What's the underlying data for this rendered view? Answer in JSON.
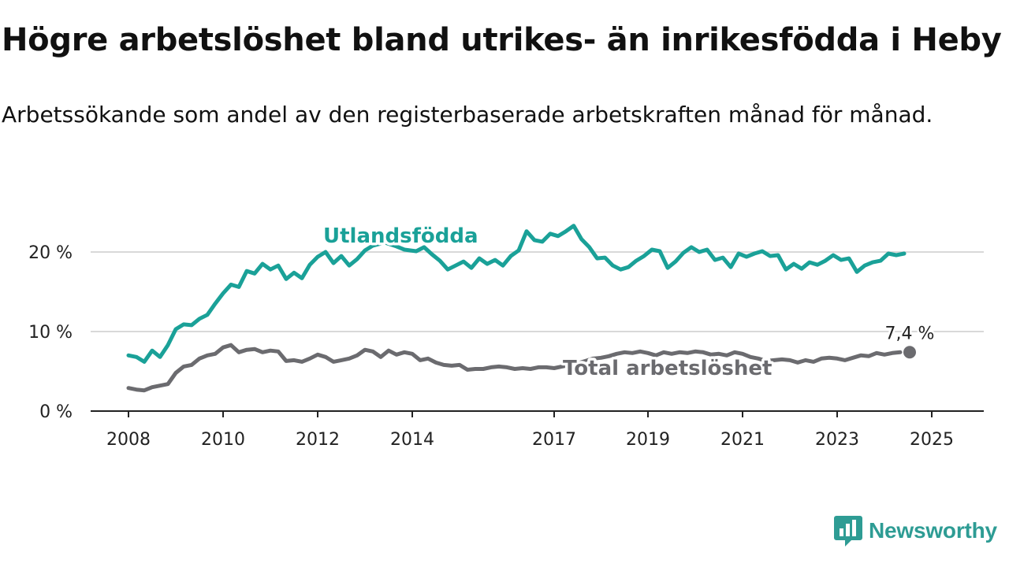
{
  "title": "Högre arbetslöshet bland utrikes- än inrikesfödda i Heby",
  "subtitle": "Arbetssökande som andel av den registerbaserade arbetskraften månad för månad.",
  "logo": {
    "text": "Newsworthy",
    "icon": "newsworthy-logo-icon"
  },
  "colors": {
    "foreign_born": "#1aa198",
    "total": "#6b6b6f",
    "gridline": "#d9d9d9",
    "axis": "#222222"
  },
  "chart_data": {
    "type": "line",
    "x_ticks": [
      "2008",
      "2010",
      "2012",
      "2014",
      "2017",
      "2019",
      "2021",
      "2023",
      "2025"
    ],
    "y_ticks": [
      "0 %",
      "10 %",
      "20 %"
    ],
    "ylim": [
      0,
      20
    ],
    "grid": "horizontal",
    "series": [
      {
        "name": "Utlandsfödda",
        "label_position": "above line near 2012-2014",
        "points": [
          [
            "2008-01",
            7.0
          ],
          [
            "2008-03",
            6.8
          ],
          [
            "2008-05",
            6.2
          ],
          [
            "2008-07",
            7.6
          ],
          [
            "2008-09",
            6.8
          ],
          [
            "2008-11",
            8.3
          ],
          [
            "2009-01",
            10.3
          ],
          [
            "2009-03",
            10.9
          ],
          [
            "2009-05",
            10.8
          ],
          [
            "2009-07",
            11.6
          ],
          [
            "2009-09",
            12.1
          ],
          [
            "2009-11",
            13.5
          ],
          [
            "2010-01",
            14.8
          ],
          [
            "2010-03",
            15.9
          ],
          [
            "2010-05",
            15.6
          ],
          [
            "2010-07",
            17.6
          ],
          [
            "2010-09",
            17.3
          ],
          [
            "2010-11",
            18.5
          ],
          [
            "2011-01",
            17.8
          ],
          [
            "2011-03",
            18.3
          ],
          [
            "2011-05",
            16.6
          ],
          [
            "2011-07",
            17.4
          ],
          [
            "2011-09",
            16.7
          ],
          [
            "2011-11",
            18.4
          ],
          [
            "2012-01",
            19.4
          ],
          [
            "2012-03",
            20.0
          ],
          [
            "2012-05",
            18.6
          ],
          [
            "2012-07",
            19.5
          ],
          [
            "2012-09",
            18.3
          ],
          [
            "2012-11",
            19.1
          ],
          [
            "2013-01",
            20.2
          ],
          [
            "2013-03",
            20.8
          ],
          [
            "2013-06",
            21.2
          ],
          [
            "2013-09",
            20.7
          ],
          [
            "2013-11",
            20.3
          ],
          [
            "2014-02",
            20.1
          ],
          [
            "2014-04",
            20.6
          ],
          [
            "2014-06",
            19.7
          ],
          [
            "2014-08",
            18.9
          ],
          [
            "2014-10",
            17.8
          ],
          [
            "2014-12",
            18.3
          ],
          [
            "2015-02",
            18.8
          ],
          [
            "2015-04",
            18.0
          ],
          [
            "2015-06",
            19.2
          ],
          [
            "2015-08",
            18.5
          ],
          [
            "2015-10",
            19.0
          ],
          [
            "2015-12",
            18.3
          ],
          [
            "2016-02",
            19.5
          ],
          [
            "2016-04",
            20.2
          ],
          [
            "2016-06",
            22.6
          ],
          [
            "2016-08",
            21.5
          ],
          [
            "2016-10",
            21.3
          ],
          [
            "2016-12",
            22.3
          ],
          [
            "2017-02",
            22.0
          ],
          [
            "2017-04",
            22.6
          ],
          [
            "2017-06",
            23.3
          ],
          [
            "2017-08",
            21.6
          ],
          [
            "2017-10",
            20.6
          ],
          [
            "2017-12",
            19.2
          ],
          [
            "2018-02",
            19.3
          ],
          [
            "2018-04",
            18.3
          ],
          [
            "2018-06",
            17.8
          ],
          [
            "2018-08",
            18.1
          ],
          [
            "2018-10",
            18.9
          ],
          [
            "2018-12",
            19.5
          ],
          [
            "2019-02",
            20.3
          ],
          [
            "2019-04",
            20.1
          ],
          [
            "2019-06",
            18.0
          ],
          [
            "2019-08",
            18.8
          ],
          [
            "2019-10",
            19.9
          ],
          [
            "2019-12",
            20.6
          ],
          [
            "2020-02",
            20.0
          ],
          [
            "2020-04",
            20.3
          ],
          [
            "2020-06",
            19.0
          ],
          [
            "2020-08",
            19.3
          ],
          [
            "2020-10",
            18.1
          ],
          [
            "2020-12",
            19.8
          ],
          [
            "2021-02",
            19.4
          ],
          [
            "2021-04",
            19.8
          ],
          [
            "2021-06",
            20.1
          ],
          [
            "2021-08",
            19.5
          ],
          [
            "2021-10",
            19.6
          ],
          [
            "2021-12",
            17.8
          ],
          [
            "2022-02",
            18.5
          ],
          [
            "2022-04",
            17.9
          ],
          [
            "2022-06",
            18.7
          ],
          [
            "2022-08",
            18.4
          ],
          [
            "2022-10",
            18.9
          ],
          [
            "2022-12",
            19.6
          ],
          [
            "2023-02",
            19.0
          ],
          [
            "2023-04",
            19.2
          ],
          [
            "2023-06",
            17.5
          ],
          [
            "2023-08",
            18.3
          ],
          [
            "2023-10",
            18.7
          ],
          [
            "2023-12",
            18.9
          ],
          [
            "2024-02",
            19.8
          ],
          [
            "2024-04",
            19.6
          ],
          [
            "2024-06",
            19.8
          ]
        ]
      },
      {
        "name": "Total arbetslöshet",
        "label_position": "below line near 2017-2020",
        "end_label": "7,4 %",
        "points": [
          [
            "2008-01",
            2.9
          ],
          [
            "2008-03",
            2.7
          ],
          [
            "2008-05",
            2.6
          ],
          [
            "2008-07",
            3.0
          ],
          [
            "2008-09",
            3.2
          ],
          [
            "2008-11",
            3.4
          ],
          [
            "2009-01",
            4.8
          ],
          [
            "2009-03",
            5.6
          ],
          [
            "2009-05",
            5.8
          ],
          [
            "2009-07",
            6.6
          ],
          [
            "2009-09",
            7.0
          ],
          [
            "2009-11",
            7.2
          ],
          [
            "2010-01",
            8.0
          ],
          [
            "2010-03",
            8.3
          ],
          [
            "2010-05",
            7.4
          ],
          [
            "2010-07",
            7.7
          ],
          [
            "2010-09",
            7.8
          ],
          [
            "2010-11",
            7.4
          ],
          [
            "2011-01",
            7.6
          ],
          [
            "2011-03",
            7.5
          ],
          [
            "2011-05",
            6.3
          ],
          [
            "2011-07",
            6.4
          ],
          [
            "2011-09",
            6.2
          ],
          [
            "2011-11",
            6.6
          ],
          [
            "2012-01",
            7.1
          ],
          [
            "2012-03",
            6.8
          ],
          [
            "2012-05",
            6.2
          ],
          [
            "2012-07",
            6.4
          ],
          [
            "2012-09",
            6.6
          ],
          [
            "2012-11",
            7.0
          ],
          [
            "2013-01",
            7.7
          ],
          [
            "2013-03",
            7.5
          ],
          [
            "2013-05",
            6.8
          ],
          [
            "2013-07",
            7.6
          ],
          [
            "2013-09",
            7.1
          ],
          [
            "2013-11",
            7.4
          ],
          [
            "2014-01",
            7.2
          ],
          [
            "2014-03",
            6.4
          ],
          [
            "2014-05",
            6.6
          ],
          [
            "2014-07",
            6.1
          ],
          [
            "2014-09",
            5.8
          ],
          [
            "2014-11",
            5.7
          ],
          [
            "2015-01",
            5.8
          ],
          [
            "2015-03",
            5.2
          ],
          [
            "2015-05",
            5.3
          ],
          [
            "2015-07",
            5.3
          ],
          [
            "2015-09",
            5.5
          ],
          [
            "2015-11",
            5.6
          ],
          [
            "2016-01",
            5.5
          ],
          [
            "2016-03",
            5.3
          ],
          [
            "2016-05",
            5.4
          ],
          [
            "2016-07",
            5.3
          ],
          [
            "2016-09",
            5.5
          ],
          [
            "2016-11",
            5.5
          ],
          [
            "2017-01",
            5.4
          ],
          [
            "2017-03",
            5.6
          ],
          [
            "2017-05",
            5.8
          ],
          [
            "2017-07",
            6.0
          ],
          [
            "2017-09",
            6.3
          ],
          [
            "2017-11",
            6.6
          ],
          [
            "2018-01",
            6.7
          ],
          [
            "2018-03",
            6.9
          ],
          [
            "2018-05",
            7.2
          ],
          [
            "2018-07",
            7.4
          ],
          [
            "2018-09",
            7.3
          ],
          [
            "2018-11",
            7.5
          ],
          [
            "2019-01",
            7.3
          ],
          [
            "2019-03",
            7.0
          ],
          [
            "2019-05",
            7.4
          ],
          [
            "2019-07",
            7.2
          ],
          [
            "2019-09",
            7.4
          ],
          [
            "2019-11",
            7.3
          ],
          [
            "2020-01",
            7.5
          ],
          [
            "2020-03",
            7.4
          ],
          [
            "2020-05",
            7.1
          ],
          [
            "2020-07",
            7.2
          ],
          [
            "2020-09",
            7.0
          ],
          [
            "2020-11",
            7.4
          ],
          [
            "2021-01",
            7.2
          ],
          [
            "2021-03",
            6.8
          ],
          [
            "2021-05",
            6.6
          ],
          [
            "2021-07",
            6.3
          ],
          [
            "2021-09",
            6.4
          ],
          [
            "2021-11",
            6.5
          ],
          [
            "2022-01",
            6.4
          ],
          [
            "2022-03",
            6.1
          ],
          [
            "2022-05",
            6.4
          ],
          [
            "2022-07",
            6.2
          ],
          [
            "2022-09",
            6.6
          ],
          [
            "2022-11",
            6.7
          ],
          [
            "2023-01",
            6.6
          ],
          [
            "2023-03",
            6.4
          ],
          [
            "2023-05",
            6.7
          ],
          [
            "2023-07",
            7.0
          ],
          [
            "2023-09",
            6.9
          ],
          [
            "2023-11",
            7.3
          ],
          [
            "2024-01",
            7.1
          ],
          [
            "2024-03",
            7.3
          ],
          [
            "2024-05",
            7.4
          ]
        ]
      }
    ]
  }
}
